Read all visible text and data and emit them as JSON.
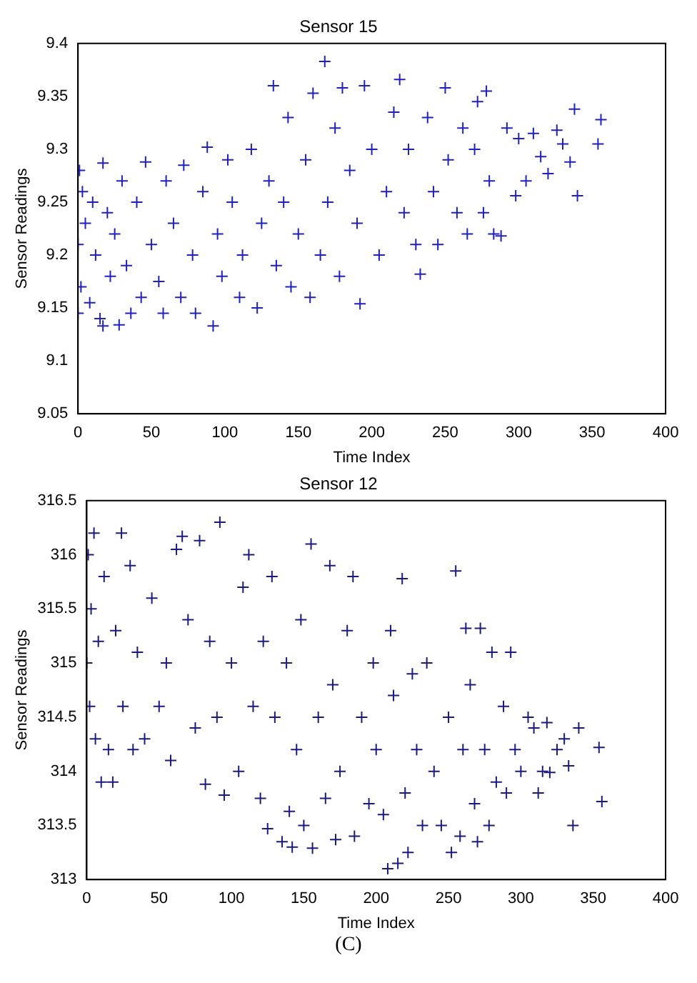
{
  "chart_data": [
    {
      "type": "scatter",
      "title": "Sensor 15",
      "xlabel": "Time Index",
      "ylabel": "Sensor Readings",
      "xlim": [
        0,
        400
      ],
      "xticks": [
        0,
        50,
        100,
        150,
        200,
        250,
        300,
        350,
        400
      ],
      "ylim": [
        9.05,
        9.4
      ],
      "yticks": [
        9.05,
        9.1,
        9.15,
        9.2,
        9.25,
        9.3,
        9.35,
        9.4
      ],
      "grid": false,
      "marker": "cross",
      "series": [
        {
          "color": "#2020c0",
          "x": [
            0,
            0,
            1,
            2,
            3,
            5,
            8,
            10,
            12,
            15,
            17,
            17,
            20,
            22,
            25,
            28,
            30,
            33,
            36,
            40,
            43,
            46,
            50,
            55,
            58,
            60,
            65,
            70,
            72,
            78,
            80,
            85,
            88,
            92,
            95,
            98,
            102,
            105,
            110,
            112,
            118,
            122,
            125,
            130,
            133,
            135,
            140,
            143,
            145,
            150,
            155,
            158,
            160,
            165,
            168,
            170,
            175,
            178,
            180,
            185,
            190,
            192,
            195,
            200,
            205,
            210,
            215,
            219,
            222,
            225,
            230,
            233,
            238,
            242,
            245,
            250,
            252,
            258,
            262,
            265,
            270,
            272,
            276,
            278,
            280,
            283,
            288,
            292,
            298,
            300,
            305,
            310,
            315,
            320,
            326,
            330,
            335,
            338,
            340,
            354,
            356
          ],
          "values": [
            9.21,
            9.145,
            9.28,
            9.17,
            9.26,
            9.23,
            9.155,
            9.25,
            9.2,
            9.14,
            9.133,
            9.287,
            9.24,
            9.18,
            9.22,
            9.134,
            9.27,
            9.19,
            9.145,
            9.25,
            9.16,
            9.288,
            9.21,
            9.175,
            9.145,
            9.27,
            9.23,
            9.16,
            9.285,
            9.2,
            9.145,
            9.26,
            9.302,
            9.133,
            9.22,
            9.18,
            9.29,
            9.25,
            9.16,
            9.2,
            9.3,
            9.15,
            9.23,
            9.27,
            9.36,
            9.19,
            9.25,
            9.33,
            9.17,
            9.22,
            9.29,
            9.16,
            9.353,
            9.2,
            9.383,
            9.25,
            9.32,
            9.18,
            9.358,
            9.28,
            9.23,
            9.154,
            9.36,
            9.3,
            9.2,
            9.26,
            9.335,
            9.366,
            9.24,
            9.3,
            9.21,
            9.182,
            9.33,
            9.26,
            9.21,
            9.358,
            9.29,
            9.24,
            9.32,
            9.22,
            9.3,
            9.345,
            9.24,
            9.355,
            9.27,
            9.22,
            9.218,
            9.32,
            9.256,
            9.31,
            9.27,
            9.315,
            9.293,
            9.277,
            9.318,
            9.305,
            9.288,
            9.338,
            9.256,
            9.305,
            9.328
          ]
        }
      ]
    },
    {
      "type": "scatter",
      "title": "Sensor 12",
      "xlabel": "Time Index",
      "ylabel": "Sensor Readings",
      "xlim": [
        0,
        400
      ],
      "xticks": [
        0,
        50,
        100,
        150,
        200,
        250,
        300,
        350,
        400
      ],
      "ylim": [
        313,
        316.5
      ],
      "yticks": [
        313,
        313.5,
        314,
        314.5,
        315,
        315.5,
        316,
        316.5
      ],
      "grid": false,
      "marker": "cross",
      "annotations": [
        "(C)"
      ],
      "series": [
        {
          "color": "#1a1a80",
          "x": [
            0,
            1,
            2,
            3,
            5,
            6,
            8,
            10,
            12,
            15,
            18,
            20,
            24,
            25,
            30,
            32,
            35,
            40,
            45,
            50,
            55,
            58,
            62,
            66,
            70,
            75,
            78,
            82,
            85,
            90,
            92,
            95,
            100,
            105,
            108,
            112,
            115,
            120,
            122,
            125,
            128,
            130,
            135,
            138,
            140,
            142,
            145,
            148,
            150,
            155,
            156,
            160,
            165,
            168,
            170,
            172,
            175,
            180,
            184,
            185,
            190,
            195,
            198,
            200,
            205,
            208,
            210,
            212,
            215,
            218,
            220,
            222,
            225,
            228,
            232,
            235,
            240,
            245,
            250,
            252,
            255,
            258,
            260,
            262,
            265,
            268,
            270,
            272,
            275,
            278,
            280,
            283,
            288,
            290,
            293,
            296,
            300,
            305,
            309,
            312,
            315,
            318,
            320,
            325,
            330,
            333,
            336,
            340,
            354,
            356
          ],
          "values": [
            315.0,
            316.0,
            314.6,
            315.5,
            316.2,
            314.3,
            315.2,
            313.9,
            315.8,
            314.2,
            313.9,
            315.3,
            316.2,
            314.6,
            315.9,
            314.2,
            315.1,
            314.3,
            315.6,
            314.6,
            315.0,
            314.1,
            316.05,
            316.17,
            315.4,
            314.4,
            316.13,
            313.88,
            315.2,
            314.5,
            316.3,
            313.78,
            315.0,
            314.0,
            315.7,
            316.0,
            314.6,
            313.75,
            315.2,
            313.47,
            315.8,
            314.5,
            313.35,
            315.0,
            313.63,
            313.3,
            314.2,
            315.4,
            313.5,
            316.1,
            313.29,
            314.5,
            313.75,
            315.9,
            314.8,
            313.37,
            314.0,
            315.3,
            315.8,
            313.4,
            314.5,
            313.7,
            315.0,
            314.2,
            313.6,
            313.1,
            315.3,
            314.7,
            313.15,
            315.78,
            313.8,
            313.25,
            314.9,
            314.2,
            313.5,
            315.0,
            314.0,
            313.5,
            314.5,
            313.25,
            315.85,
            313.4,
            314.2,
            315.32,
            314.8,
            313.7,
            313.35,
            315.32,
            314.2,
            313.5,
            315.1,
            313.9,
            314.6,
            313.8,
            315.1,
            314.2,
            314.0,
            314.5,
            314.4,
            313.8,
            314.0,
            314.45,
            313.99,
            314.2,
            314.3,
            314.05,
            313.5,
            314.4,
            314.22,
            313.72
          ]
        }
      ]
    }
  ]
}
